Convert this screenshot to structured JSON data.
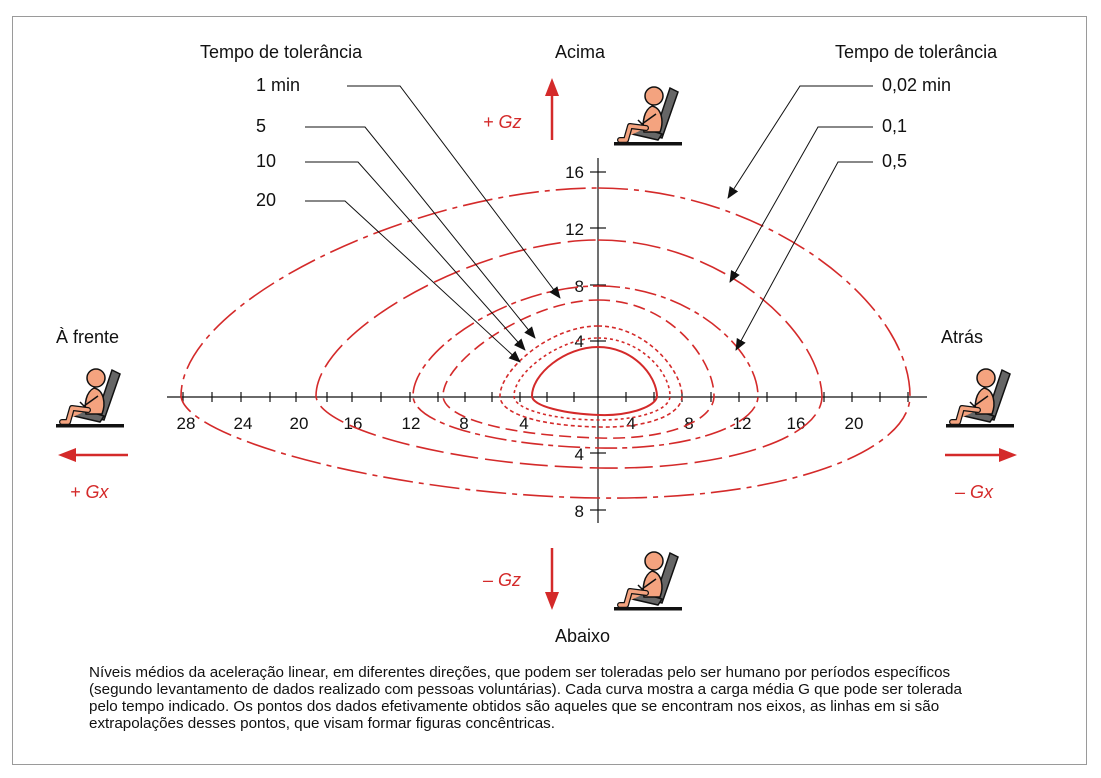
{
  "colors": {
    "curve": "#d42a2a",
    "axis": "#111111",
    "body_fill": "#f4a37f",
    "seat": "#555555"
  },
  "labels": {
    "tolerance_left": "Tempo de tolerância",
    "tolerance_right": "Tempo de tolerância",
    "up": "Acima",
    "down": "Abaixo",
    "front": "À frente",
    "back": "Atrás",
    "gz_plus": "+ Gz",
    "gz_minus": "– Gz",
    "gx_plus": "+ Gx",
    "gx_minus": "– Gx"
  },
  "times_left": [
    "1 min",
    "5",
    "10",
    "20"
  ],
  "times_right": [
    "0,02 min",
    "0,1",
    "0,5"
  ],
  "axis": {
    "x_ticks_left": [
      "28",
      "24",
      "20",
      "16",
      "12",
      "8",
      "4"
    ],
    "x_ticks_right": [
      "4",
      "8",
      "12",
      "16",
      "20"
    ],
    "y_ticks_up": [
      "16",
      "12",
      "8",
      "4"
    ],
    "y_ticks_down": [
      "4",
      "8"
    ]
  },
  "caption": [
    "Níveis médios da aceleração linear, em diferentes direções, que podem ser toleradas pelo ser humano por períodos específicos",
    "(segundo levantamento de dados realizado com pessoas voluntárias). Cada curva mostra a carga média G que pode ser tolerada",
    "pelo tempo indicado. Os pontos dos dados efetivamente obtidos são aqueles que se encontram nos eixos, as linhas em si são",
    "extrapolações desses pontos, que visam formar figuras concêntricas."
  ],
  "icons": [
    "seated-person-up-icon",
    "seated-person-front-icon",
    "seated-person-back-icon",
    "seated-person-down-icon"
  ]
}
